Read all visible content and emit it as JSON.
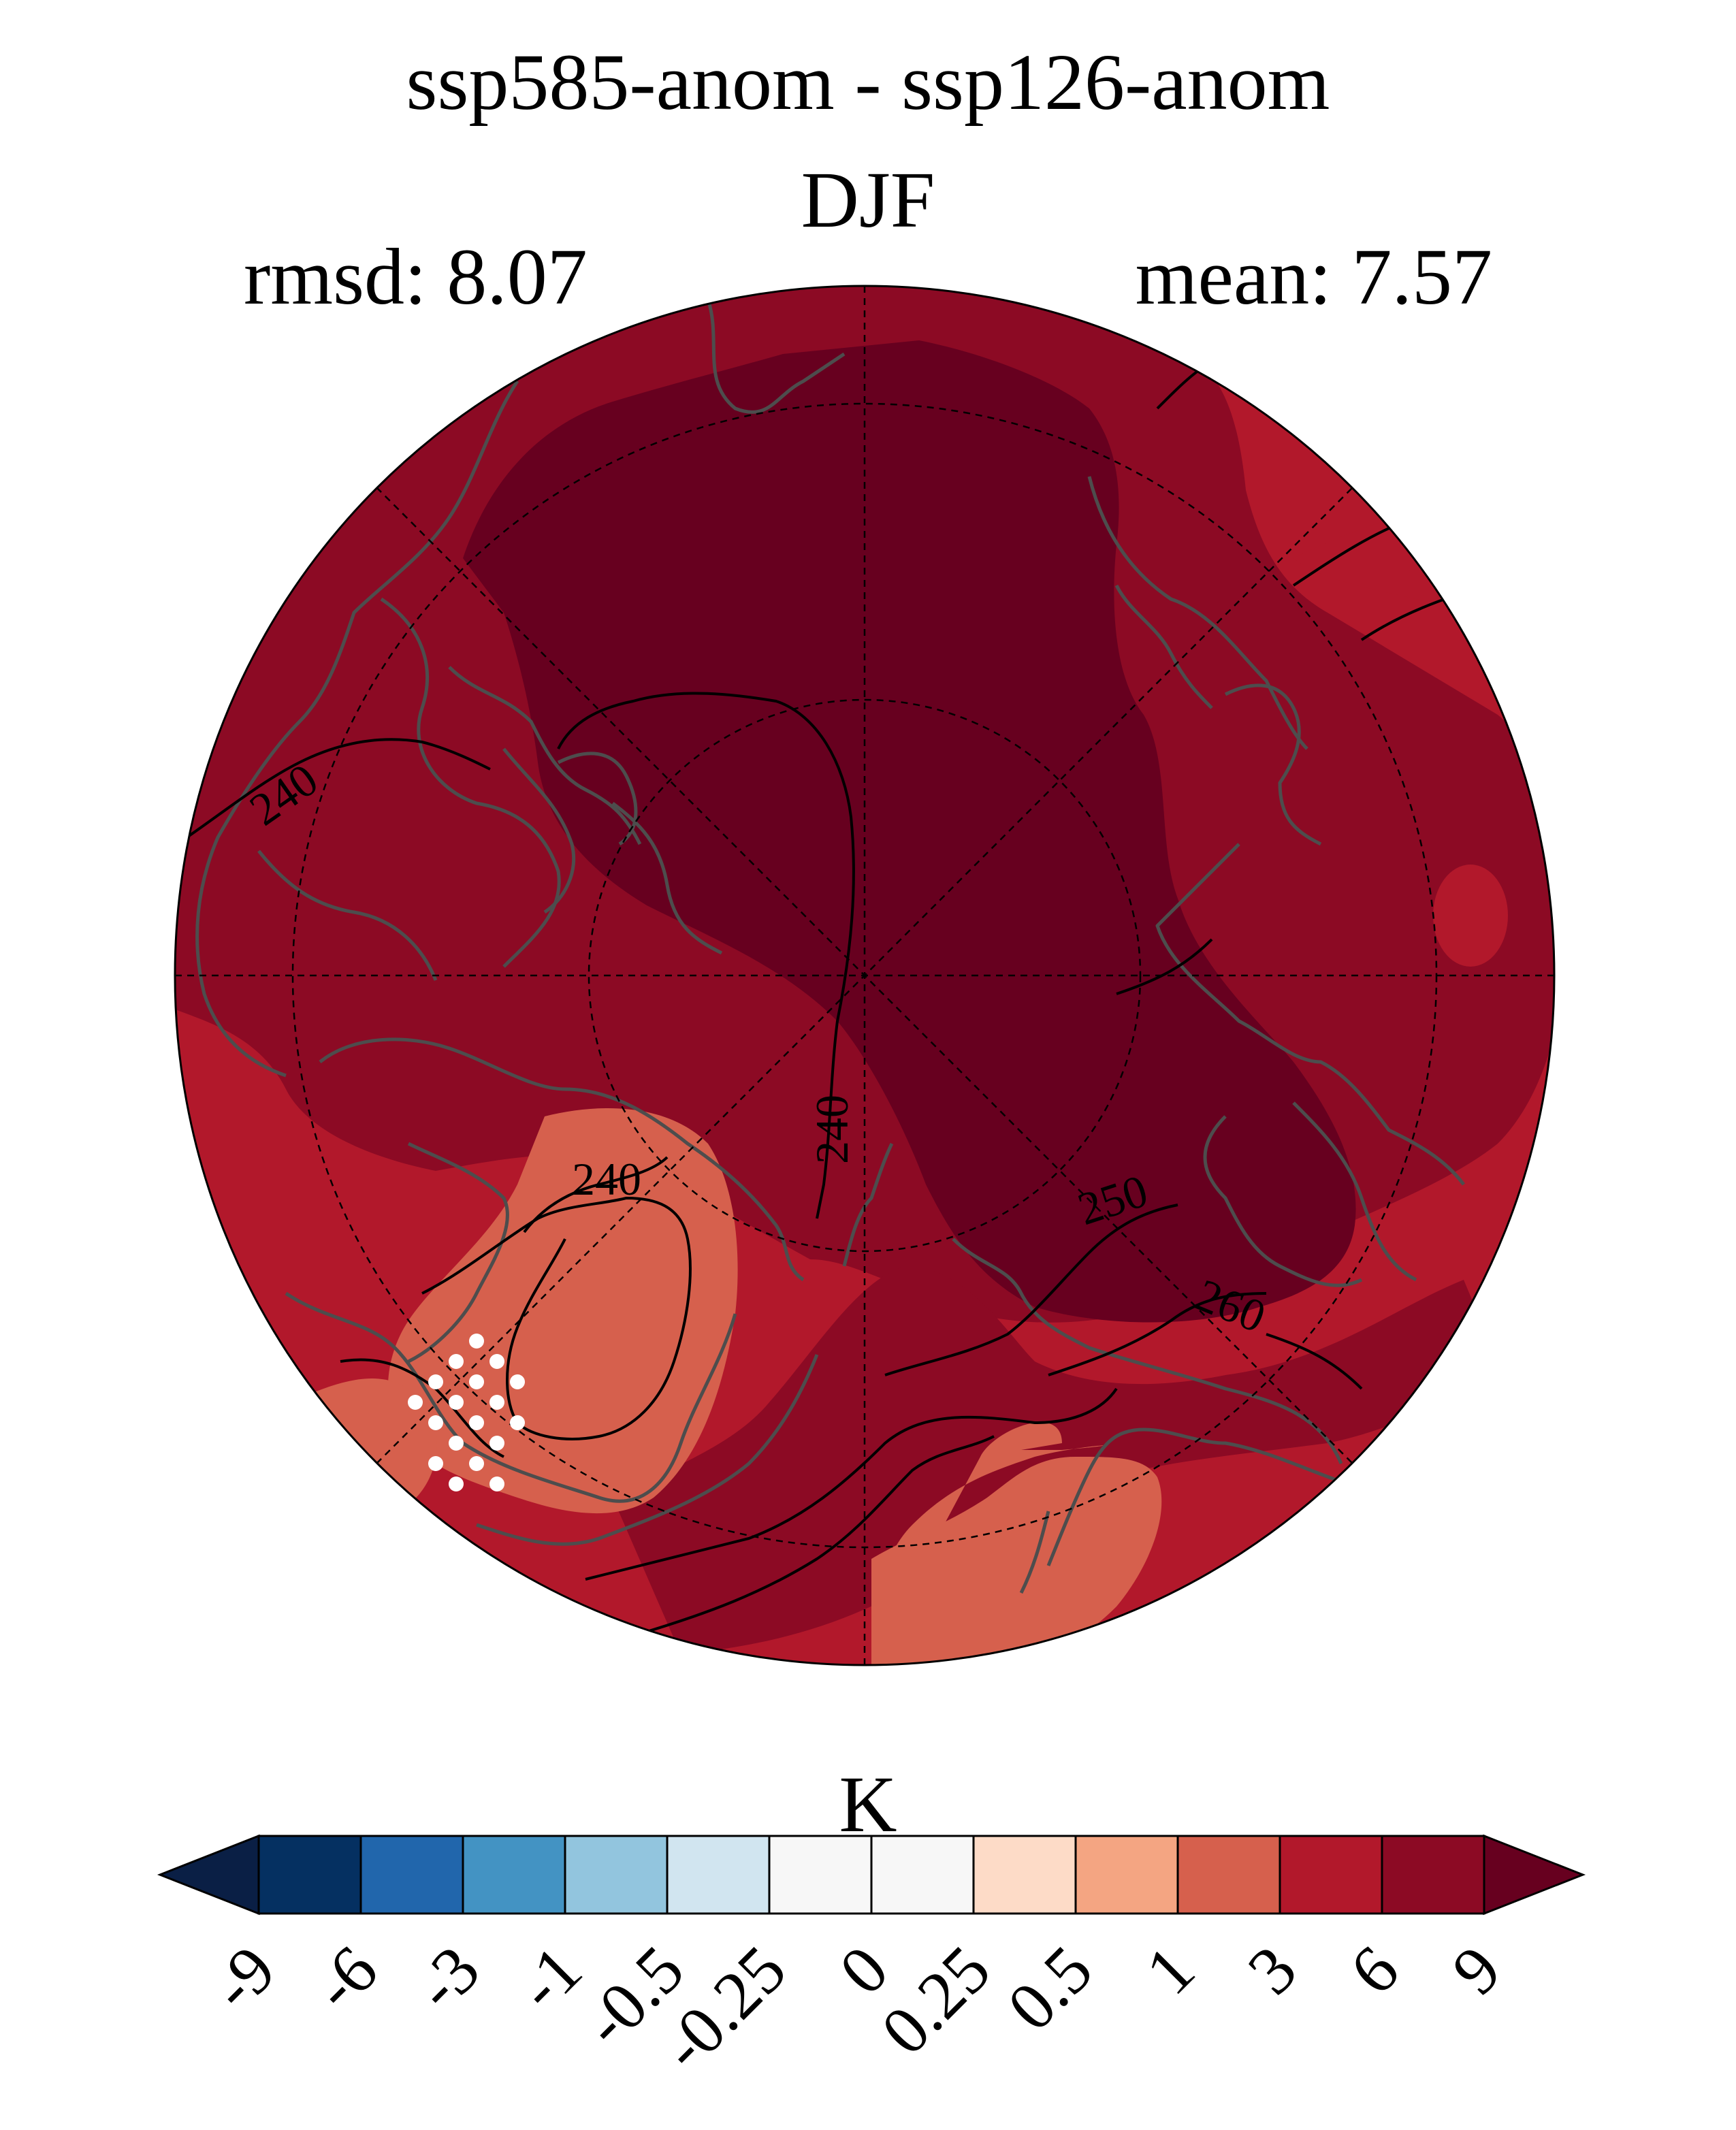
{
  "chart_data": {
    "type": "polar-stereographic-contour-map",
    "title": "ssp585-anom - ssp126-anom",
    "season": "DJF",
    "rmsd_label": "rmsd: 8.07",
    "mean_label": "mean: 7.57",
    "rmsd": 8.07,
    "mean": 7.57,
    "colorbar": {
      "unit": "K",
      "extend": "both",
      "tick_labels": [
        "-9",
        "-6",
        "-3",
        "-1",
        "-0.5",
        "-0.25",
        "0",
        "0.25",
        "0.5",
        "1",
        "3",
        "6",
        "9"
      ],
      "colors": [
        "#053061",
        "#2166ac",
        "#4393c3",
        "#92c5de",
        "#d1e5f0",
        "#f7f7f7",
        "#f7f7f7",
        "#fddbc7",
        "#f4a582",
        "#d6604d",
        "#b2182b",
        "#8c0a24"
      ],
      "under_color": "#0a1f45",
      "over_color": "#67001f"
    },
    "contour_labels": [
      "240",
      "240",
      "240",
      "250",
      "260"
    ],
    "significance_stipple": "white dots over region of smaller anomaly"
  }
}
